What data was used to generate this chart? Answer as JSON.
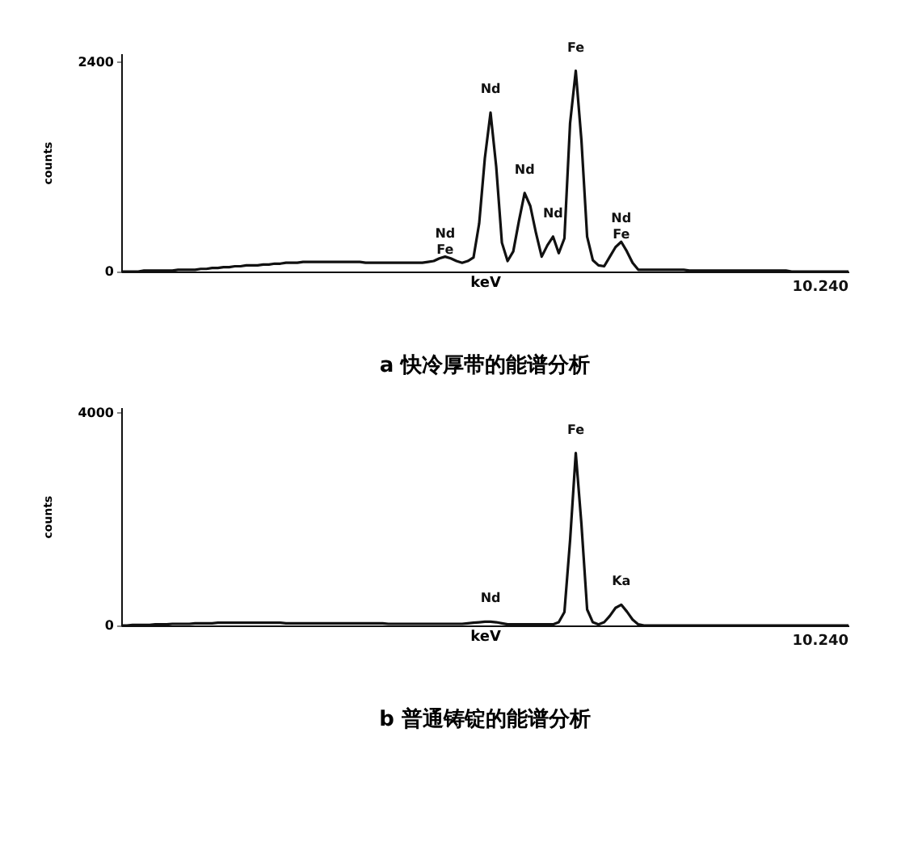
{
  "chart_data": [
    {
      "type": "line",
      "title": "a  快冷厚带的能谱分析",
      "xlabel": "keV",
      "ylabel": "counts",
      "color": "#111111",
      "grid": false,
      "ylim": [
        0,
        2500
      ],
      "yticks": [
        0,
        2400
      ],
      "categories": [
        null,
        null,
        null,
        null,
        null,
        null,
        null,
        null,
        null,
        null,
        null,
        null,
        null,
        null,
        null,
        null,
        null,
        null,
        null,
        null,
        null,
        null,
        null,
        null,
        null,
        null,
        null,
        null,
        null,
        null,
        null,
        null,
        null,
        null,
        null,
        null,
        null,
        null,
        null,
        null,
        null,
        null,
        null,
        null,
        null,
        null,
        null,
        null,
        null,
        null,
        null,
        null,
        null,
        null,
        null,
        null,
        null,
        null,
        null,
        null,
        null,
        null,
        null,
        null,
        null,
        null,
        null,
        null,
        null,
        null,
        null,
        null,
        null,
        null,
        null,
        null,
        null,
        null,
        null,
        null,
        null,
        null,
        null,
        null,
        null,
        null,
        null,
        null,
        null,
        null,
        null,
        null,
        null,
        null,
        null,
        null,
        null,
        null,
        null,
        null,
        null,
        null,
        null,
        null,
        null,
        null,
        null,
        null,
        null,
        null,
        null,
        null,
        null,
        null,
        null,
        null,
        null,
        null,
        null,
        null,
        null,
        null,
        null,
        null,
        null,
        null,
        null,
        null,
        null
      ],
      "values": [
        0,
        0,
        0,
        0,
        10,
        10,
        10,
        10,
        10,
        10,
        20,
        20,
        20,
        20,
        30,
        30,
        40,
        40,
        50,
        50,
        60,
        60,
        70,
        70,
        70,
        80,
        80,
        90,
        90,
        100,
        100,
        100,
        110,
        110,
        110,
        110,
        110,
        110,
        110,
        110,
        110,
        110,
        110,
        100,
        100,
        100,
        100,
        100,
        100,
        100,
        100,
        100,
        100,
        100,
        110,
        120,
        150,
        170,
        150,
        120,
        100,
        120,
        160,
        550,
        1300,
        1820,
        1200,
        330,
        120,
        230,
        580,
        900,
        750,
        440,
        170,
        300,
        400,
        210,
        380,
        1700,
        2300,
        1500,
        400,
        130,
        70,
        60,
        170,
        280,
        340,
        230,
        100,
        20,
        20,
        20,
        20,
        20,
        20,
        20,
        20,
        20,
        10,
        10,
        10,
        10,
        10,
        10,
        10,
        10,
        10,
        10,
        10,
        10,
        10,
        10,
        10,
        10,
        10,
        10,
        0,
        0,
        0,
        0,
        0,
        0,
        0,
        0,
        0,
        0,
        0
      ],
      "value_labels": [
        null,
        null,
        null,
        null,
        null,
        null,
        null,
        null,
        null,
        null,
        null,
        null,
        null,
        null,
        null,
        null,
        null,
        null,
        null,
        null,
        null,
        null,
        null,
        null,
        null,
        null,
        null,
        null,
        null,
        null,
        null,
        null,
        null,
        null,
        null,
        null,
        null,
        null,
        null,
        null,
        null,
        null,
        null,
        null,
        null,
        null,
        null,
        null,
        null,
        null,
        null,
        null,
        null,
        null,
        null,
        null,
        null,
        "Nd\nFe",
        null,
        null,
        null,
        null,
        null,
        null,
        null,
        "Nd",
        null,
        null,
        null,
        null,
        null,
        "Nd",
        null,
        null,
        null,
        null,
        "Nd",
        null,
        null,
        null,
        "Fe",
        null,
        null,
        null,
        null,
        null,
        null,
        null,
        "Nd\nFe",
        null,
        null,
        null,
        null,
        null,
        null,
        null,
        null,
        null,
        null,
        null,
        null,
        null,
        null,
        null,
        null,
        null,
        null,
        null,
        null,
        null,
        null,
        null,
        null,
        null,
        null,
        null,
        null,
        null,
        null,
        null,
        null,
        null,
        null,
        null,
        null,
        null,
        null,
        null,
        null
      ],
      "annotations": [
        "10.240"
      ]
    },
    {
      "type": "line",
      "title": "b  普通铸锭的能谱分析",
      "xlabel": "keV",
      "ylabel": "counts",
      "color": "#111111",
      "grid": false,
      "ylim": [
        0,
        4100
      ],
      "yticks": [
        0,
        4000
      ],
      "categories": [
        null,
        null,
        null,
        null,
        null,
        null,
        null,
        null,
        null,
        null,
        null,
        null,
        null,
        null,
        null,
        null,
        null,
        null,
        null,
        null,
        null,
        null,
        null,
        null,
        null,
        null,
        null,
        null,
        null,
        null,
        null,
        null,
        null,
        null,
        null,
        null,
        null,
        null,
        null,
        null,
        null,
        null,
        null,
        null,
        null,
        null,
        null,
        null,
        null,
        null,
        null,
        null,
        null,
        null,
        null,
        null,
        null,
        null,
        null,
        null,
        null,
        null,
        null,
        null,
        null,
        null,
        null,
        null,
        null,
        null,
        null,
        null,
        null,
        null,
        null,
        null,
        null,
        null,
        null,
        null,
        null,
        null,
        null,
        null,
        null,
        null,
        null,
        null,
        null,
        null,
        null,
        null,
        null,
        null,
        null,
        null,
        null,
        null,
        null,
        null,
        null,
        null,
        null,
        null,
        null,
        null,
        null,
        null,
        null,
        null,
        null,
        null,
        null,
        null,
        null,
        null,
        null,
        null,
        null,
        null,
        null,
        null,
        null,
        null,
        null,
        null,
        null,
        null,
        null
      ],
      "values": [
        0,
        0,
        10,
        10,
        10,
        10,
        20,
        20,
        20,
        30,
        30,
        30,
        30,
        40,
        40,
        40,
        40,
        50,
        50,
        50,
        50,
        50,
        50,
        50,
        50,
        50,
        50,
        50,
        50,
        40,
        40,
        40,
        40,
        40,
        40,
        40,
        40,
        40,
        40,
        40,
        40,
        40,
        40,
        40,
        40,
        40,
        40,
        30,
        30,
        30,
        30,
        30,
        30,
        30,
        30,
        30,
        30,
        30,
        30,
        30,
        30,
        40,
        50,
        60,
        70,
        70,
        60,
        40,
        20,
        20,
        20,
        20,
        20,
        20,
        20,
        20,
        20,
        60,
        250,
        1600,
        3240,
        1900,
        300,
        60,
        20,
        60,
        180,
        330,
        390,
        260,
        110,
        20,
        0,
        0,
        0,
        0,
        0,
        0,
        0,
        0,
        0,
        0,
        0,
        0,
        0,
        0,
        0,
        0,
        0,
        0,
        0,
        0,
        0,
        0,
        0,
        0,
        0,
        0,
        0,
        0,
        0,
        0,
        0,
        0,
        0,
        0,
        0,
        0,
        0
      ],
      "value_labels": [
        null,
        null,
        null,
        null,
        null,
        null,
        null,
        null,
        null,
        null,
        null,
        null,
        null,
        null,
        null,
        null,
        null,
        null,
        null,
        null,
        null,
        null,
        null,
        null,
        null,
        null,
        null,
        null,
        null,
        null,
        null,
        null,
        null,
        null,
        null,
        null,
        null,
        null,
        null,
        null,
        null,
        null,
        null,
        null,
        null,
        null,
        null,
        null,
        null,
        null,
        null,
        null,
        null,
        null,
        null,
        null,
        null,
        null,
        null,
        null,
        null,
        null,
        null,
        null,
        null,
        "Nd",
        null,
        null,
        null,
        null,
        null,
        null,
        null,
        null,
        null,
        null,
        null,
        null,
        null,
        null,
        "Fe",
        null,
        null,
        null,
        null,
        null,
        null,
        null,
        "Ka",
        null,
        null,
        null,
        null,
        null,
        null,
        null,
        null,
        null,
        null,
        null,
        null,
        null,
        null,
        null,
        null,
        null,
        null,
        null,
        null,
        null,
        null,
        null,
        null,
        null,
        null,
        null,
        null,
        null,
        null,
        null,
        null,
        null,
        null,
        null,
        null,
        null,
        null,
        null,
        null
      ],
      "annotations": [
        "10.240"
      ]
    }
  ]
}
